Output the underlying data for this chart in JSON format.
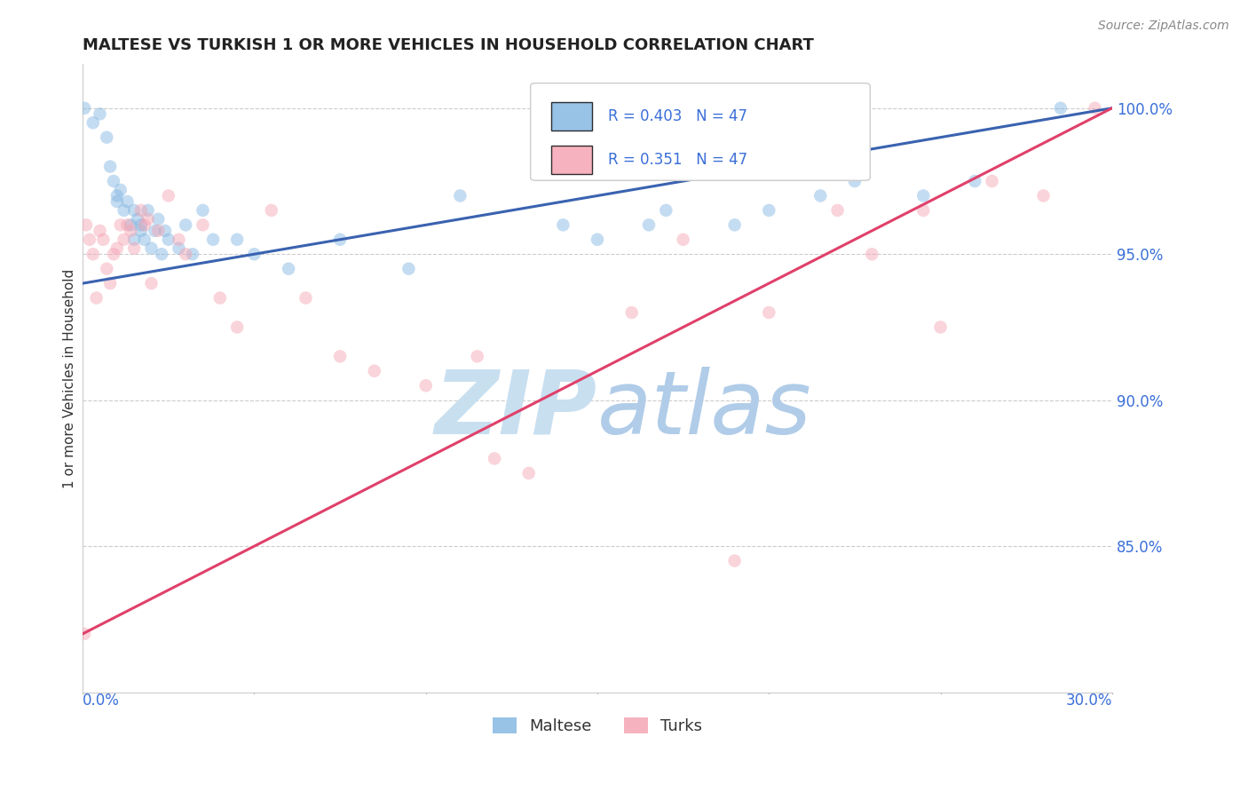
{
  "title": "MALTESE VS TURKISH 1 OR MORE VEHICLES IN HOUSEHOLD CORRELATION CHART",
  "source_text": "Source: ZipAtlas.com",
  "ylabel": "1 or more Vehicles in Household",
  "x_min": 0.0,
  "x_max": 30.0,
  "y_min": 80.0,
  "y_max": 101.5,
  "yticks": [
    85.0,
    90.0,
    95.0,
    100.0
  ],
  "ytick_labels": [
    "85.0%",
    "90.0%",
    "95.0%",
    "100.0%"
  ],
  "grid_color": "#cccccc",
  "background_color": "#ffffff",
  "blue_color": "#7eb3e0",
  "pink_color": "#f4a0b0",
  "blue_trend_color": "#3a62b0",
  "pink_trend_color": "#e0406a",
  "N": 47,
  "legend_R_blue": "R = 0.403",
  "legend_N_blue": "N = 47",
  "legend_R_pink": "R = 0.351",
  "legend_N_pink": "N = 47",
  "watermark_zip": "ZIP",
  "watermark_atlas": "atlas",
  "watermark_color_zip": "#c8dff0",
  "watermark_color_atlas": "#b0cce8",
  "blue_trend_y0": 94.0,
  "blue_trend_y1": 100.0,
  "pink_trend_y0": 82.0,
  "pink_trend_y1": 100.0,
  "blue_scatter_x": [
    0.05,
    0.3,
    0.5,
    0.7,
    0.8,
    0.9,
    1.0,
    1.0,
    1.1,
    1.2,
    1.3,
    1.4,
    1.5,
    1.5,
    1.6,
    1.7,
    1.7,
    1.8,
    1.9,
    2.0,
    2.1,
    2.2,
    2.3,
    2.4,
    2.5,
    2.8,
    3.0,
    3.2,
    3.5,
    3.8,
    4.5,
    5.0,
    6.0,
    7.5,
    9.5,
    11.0,
    14.0,
    15.0,
    16.5,
    17.0,
    19.0,
    20.0,
    21.5,
    22.5,
    24.5,
    26.0,
    28.5
  ],
  "blue_scatter_y": [
    100.0,
    99.5,
    99.8,
    99.0,
    98.0,
    97.5,
    97.0,
    96.8,
    97.2,
    96.5,
    96.8,
    96.0,
    96.5,
    95.5,
    96.2,
    96.0,
    95.8,
    95.5,
    96.5,
    95.2,
    95.8,
    96.2,
    95.0,
    95.8,
    95.5,
    95.2,
    96.0,
    95.0,
    96.5,
    95.5,
    95.5,
    95.0,
    94.5,
    95.5,
    94.5,
    97.0,
    96.0,
    95.5,
    96.0,
    96.5,
    96.0,
    96.5,
    97.0,
    97.5,
    97.0,
    97.5,
    100.0
  ],
  "pink_scatter_x": [
    0.05,
    0.1,
    0.2,
    0.3,
    0.4,
    0.5,
    0.6,
    0.7,
    0.8,
    0.9,
    1.0,
    1.1,
    1.2,
    1.3,
    1.4,
    1.5,
    1.7,
    1.8,
    1.9,
    2.0,
    2.2,
    2.5,
    2.8,
    3.0,
    3.5,
    4.0,
    4.5,
    5.5,
    6.5,
    7.5,
    8.5,
    10.0,
    11.5,
    12.0,
    13.0,
    14.5,
    16.0,
    17.5,
    19.0,
    20.0,
    22.0,
    23.0,
    24.5,
    25.0,
    26.5,
    28.0,
    29.5
  ],
  "pink_scatter_y": [
    82.0,
    96.0,
    95.5,
    95.0,
    93.5,
    95.8,
    95.5,
    94.5,
    94.0,
    95.0,
    95.2,
    96.0,
    95.5,
    96.0,
    95.8,
    95.2,
    96.5,
    96.0,
    96.2,
    94.0,
    95.8,
    97.0,
    95.5,
    95.0,
    96.0,
    93.5,
    92.5,
    96.5,
    93.5,
    91.5,
    91.0,
    90.5,
    91.5,
    88.0,
    87.5,
    98.0,
    93.0,
    95.5,
    84.5,
    93.0,
    96.5,
    95.0,
    96.5,
    92.5,
    97.5,
    97.0,
    100.0
  ],
  "marker_size": 110,
  "marker_alpha": 0.45,
  "trend_linewidth": 2.2
}
